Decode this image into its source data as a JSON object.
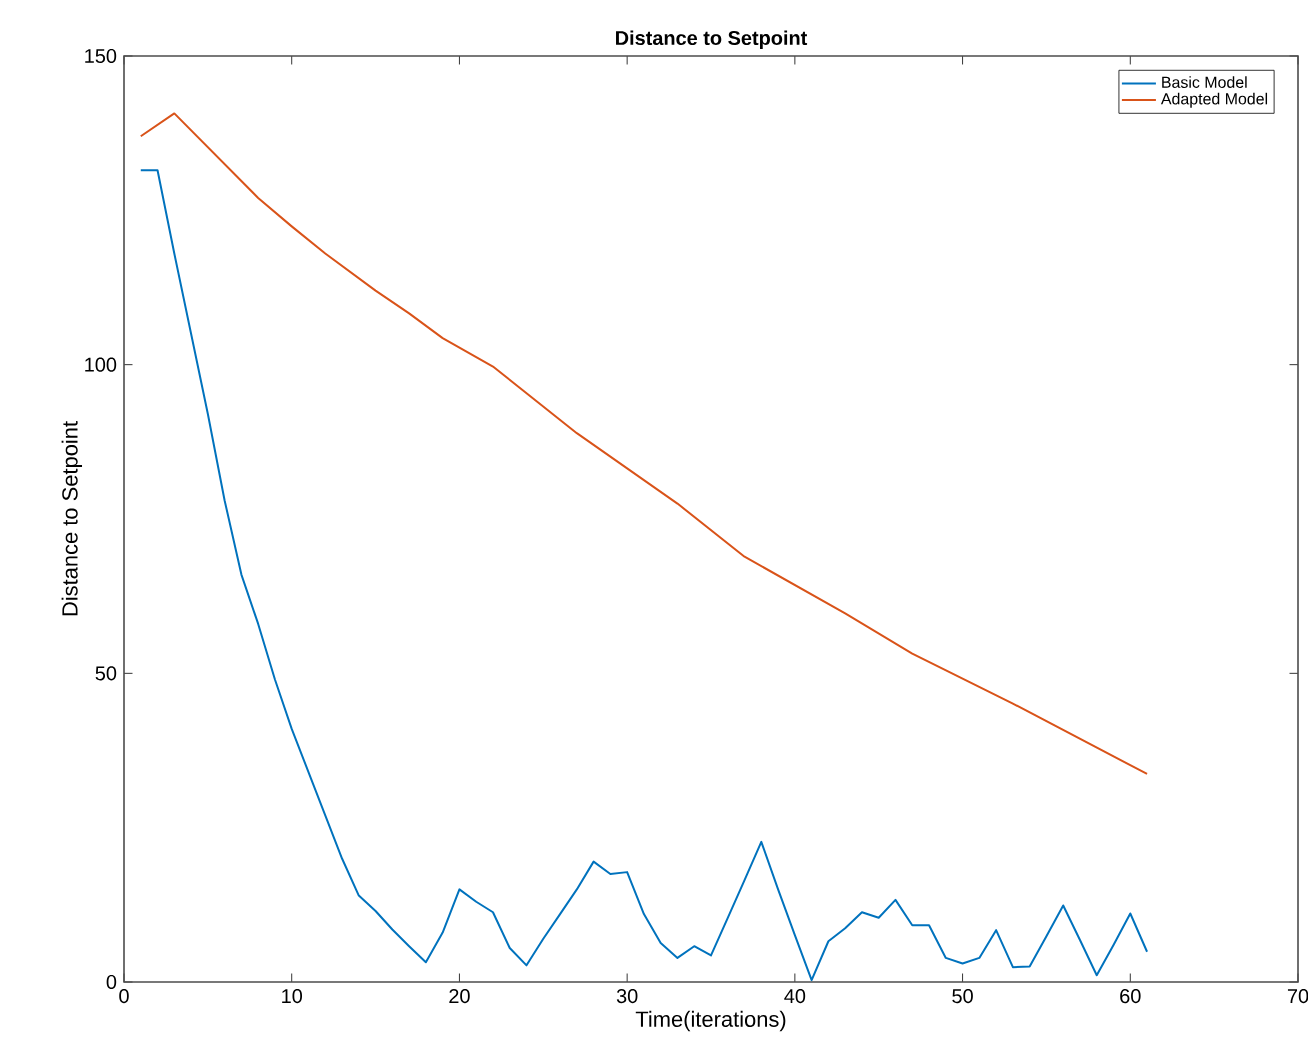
{
  "chart_data": {
    "type": "line",
    "title": "Distance to Setpoint",
    "xlabel": "Time(iterations)",
    "ylabel": "Distance to Setpoint",
    "xlim": [
      0,
      70
    ],
    "xticks": [
      0,
      10,
      20,
      30,
      40,
      50,
      60,
      70
    ],
    "ylim": [
      0,
      150
    ],
    "yticks": [
      0,
      50,
      100,
      150
    ],
    "grid": false,
    "legend": "top right",
    "marker": "none",
    "line_style": "solid",
    "series": [
      {
        "name": "Basic Model",
        "color": "#0072bd",
        "x": [
          1,
          2,
          3,
          4,
          5,
          6,
          7,
          8,
          9,
          10,
          11,
          12,
          13,
          14,
          15,
          16,
          17,
          18,
          19,
          20,
          21,
          22,
          23,
          24,
          25,
          26,
          27,
          28,
          29,
          30,
          31,
          32,
          33,
          34,
          35,
          36,
          37,
          38,
          39,
          40,
          41,
          42,
          43,
          44,
          45,
          46,
          47,
          48,
          49,
          50,
          51,
          52,
          53,
          54,
          55,
          56,
          57,
          58,
          59,
          60,
          61
        ],
        "values": [
          131.5,
          131.5,
          118,
          105,
          92,
          78,
          66,
          58,
          49,
          41,
          34,
          27,
          20,
          14,
          11.5,
          8.5,
          5.8,
          3.2,
          8,
          15,
          13,
          11.3,
          5.5,
          2.7,
          7,
          11,
          15,
          19.5,
          17.5,
          17.8,
          11,
          6.3,
          3.9,
          5.8,
          4.3,
          10.4,
          16.5,
          22.7,
          15,
          7.6,
          0.3,
          6.6,
          8.7,
          11.3,
          10.4,
          13.3,
          9.2,
          9.2,
          3.9,
          3,
          3.9,
          8.4,
          2.4,
          2.5,
          7.4,
          12.4,
          6.8,
          1.1,
          6,
          11.1,
          4.9
        ]
      },
      {
        "name": "Adapted Model",
        "color": "#d95319",
        "x": [
          1,
          3,
          8,
          10,
          12,
          15,
          17,
          19,
          22,
          27,
          33,
          37,
          43,
          47,
          53,
          61
        ],
        "values": [
          137,
          140.7,
          127,
          122.4,
          118,
          112,
          108.3,
          104.3,
          99.7,
          88.9,
          77.5,
          68.9,
          59.7,
          53.2,
          45.1,
          33.7
        ]
      }
    ]
  }
}
